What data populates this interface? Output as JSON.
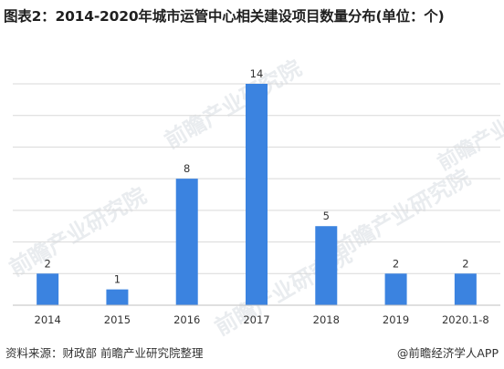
{
  "title": "图表2：2014-2020年城市运管中心相关建设项目数量分布(单位：个)",
  "watermark_text": "前瞻产业研究院",
  "footer": {
    "source": "资料来源：财政部 前瞻产业研究院整理",
    "brand": "@前瞻经济学人APP"
  },
  "colors": {
    "bar": "#3b83e0",
    "grid": "#d9d9d9",
    "axis": "#bfbfbf"
  },
  "chart_data": {
    "type": "bar",
    "categories": [
      "2014",
      "2015",
      "2016",
      "2017",
      "2018",
      "2019",
      "2020.1-8"
    ],
    "values": [
      2,
      1,
      8,
      14,
      5,
      2,
      2
    ],
    "title": "图表2：2014-2020年城市运管中心相关建设项目数量分布(单位：个)",
    "xlabel": "",
    "ylabel": "",
    "ylim": [
      0,
      14
    ],
    "grid": true,
    "data_labels": true
  }
}
